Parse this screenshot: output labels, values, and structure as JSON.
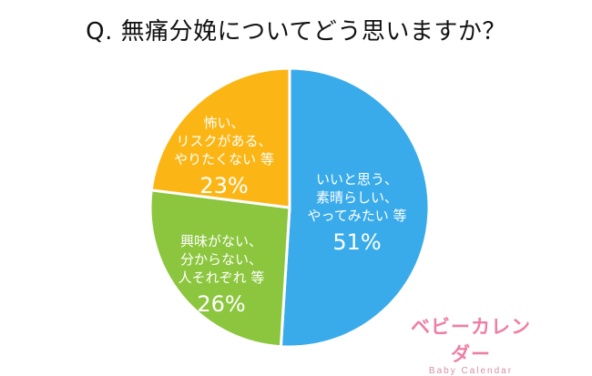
{
  "question": "Q. 無痛分娩についてどう思いますか？",
  "chart_data": {
    "type": "pie",
    "slices": [
      {
        "label_lines": [
          "いいと思う、",
          "素晴らしい、",
          "やってみたい 等"
        ],
        "value": 51,
        "value_label": "51%",
        "color": "#3aabea"
      },
      {
        "label_lines": [
          "興味がない、",
          "分からない、",
          "人それぞれ 等"
        ],
        "value": 26,
        "value_label": "26%",
        "color": "#8cc63f"
      },
      {
        "label_lines": [
          "怖い、",
          "リスクがある、",
          "やりたくない 等"
        ],
        "value": 23,
        "value_label": "23%",
        "color": "#fbb615"
      }
    ]
  },
  "logo": {
    "main": "ベビーカレンダー",
    "sub": "Baby Calendar"
  }
}
